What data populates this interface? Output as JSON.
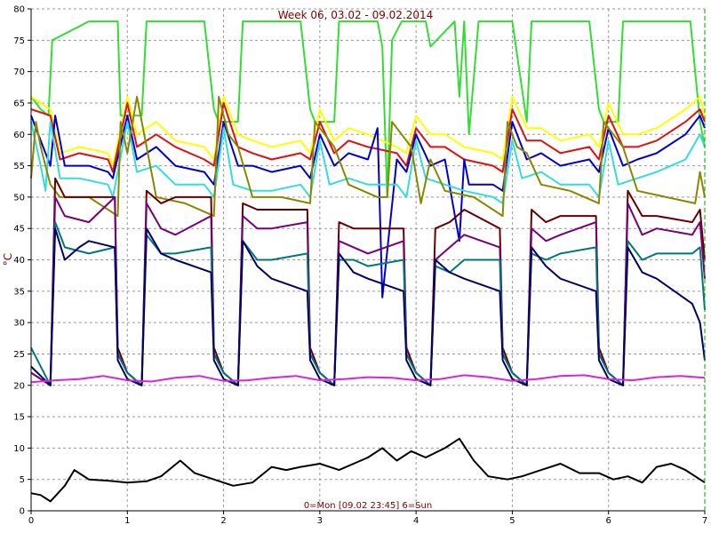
{
  "chart_data": {
    "type": "line",
    "title": "Week 06, 03.02 - 09.02.2014",
    "caption": "0=Mon [09.02 23:45] 6=Sun",
    "ylabel": "°C",
    "xlabel": "",
    "xlim": [
      0,
      7
    ],
    "ylim": [
      0,
      80
    ],
    "x_ticks": [
      0,
      1,
      2,
      3,
      4,
      5,
      6,
      7
    ],
    "y_ticks": [
      0,
      5,
      10,
      15,
      20,
      25,
      30,
      35,
      40,
      45,
      50,
      55,
      60,
      65,
      70,
      75,
      80
    ],
    "grid": true,
    "series": [
      {
        "color": "#33dd33",
        "x": [
          0,
          0.1,
          0.18,
          0.22,
          0.6,
          0.9,
          0.93,
          1.15,
          1.2,
          1.8,
          1.9,
          1.95,
          2.15,
          2.2,
          2.8,
          2.9,
          2.95,
          3.15,
          3.2,
          3.6,
          3.65,
          3.7,
          3.75,
          3.85,
          4.1,
          4.15,
          4.4,
          4.45,
          4.5,
          4.55,
          4.65,
          4.75,
          5.0,
          5.15,
          5.2,
          5.8,
          5.9,
          5.95,
          6.1,
          6.15,
          6.2,
          6.85,
          6.95,
          7.0
        ],
        "y": [
          66,
          64,
          63,
          75,
          78,
          78,
          63,
          63,
          78,
          78,
          64,
          62,
          62,
          78,
          78,
          64,
          62,
          62,
          78,
          78,
          74,
          50,
          75,
          78,
          78,
          74,
          78,
          66,
          78,
          60,
          78,
          78,
          78,
          62,
          78,
          78,
          64,
          62,
          62,
          78,
          78,
          78,
          62,
          58
        ]
      },
      {
        "color": "#ffff00",
        "x": [
          0,
          0.2,
          0.3,
          0.5,
          0.8,
          0.85,
          1.0,
          1.1,
          1.3,
          1.5,
          1.8,
          1.9,
          2.0,
          2.15,
          2.3,
          2.5,
          2.8,
          2.9,
          3.0,
          3.15,
          3.3,
          3.5,
          3.8,
          3.9,
          4.0,
          4.15,
          4.3,
          4.5,
          4.8,
          4.9,
          5.0,
          5.15,
          5.3,
          5.5,
          5.8,
          5.9,
          6.0,
          6.15,
          6.3,
          6.5,
          6.8,
          6.95,
          7.0
        ],
        "y": [
          66,
          64,
          57,
          58,
          57,
          55,
          66,
          60,
          62,
          59,
          58,
          56,
          66,
          60,
          59,
          58,
          59,
          57,
          64,
          59,
          61,
          60,
          58,
          57,
          63,
          60,
          60,
          58,
          57,
          56,
          66,
          61,
          61,
          59,
          60,
          58,
          65,
          60,
          60,
          61,
          64,
          66,
          63
        ]
      },
      {
        "color": "#dd1111",
        "x": [
          0,
          0.2,
          0.3,
          0.5,
          0.8,
          0.85,
          1.0,
          1.1,
          1.3,
          1.5,
          1.8,
          1.9,
          2.0,
          2.15,
          2.3,
          2.5,
          2.8,
          2.9,
          3.0,
          3.15,
          3.3,
          3.5,
          3.8,
          3.9,
          4.0,
          4.15,
          4.3,
          4.5,
          4.8,
          4.9,
          5.0,
          5.15,
          5.3,
          5.5,
          5.8,
          5.9,
          6.0,
          6.15,
          6.3,
          6.5,
          6.8,
          6.95,
          7.0
        ],
        "y": [
          64,
          63,
          56,
          57,
          56,
          54,
          65,
          58,
          60,
          58,
          56,
          55,
          65,
          58,
          57,
          56,
          57,
          56,
          62,
          57,
          59,
          58,
          57,
          55,
          61,
          58,
          58,
          56,
          55,
          54,
          64,
          59,
          59,
          57,
          58,
          56,
          63,
          58,
          58,
          59,
          62,
          64,
          62
        ]
      },
      {
        "color": "#0000cc",
        "x": [
          0,
          0.15,
          0.2,
          0.25,
          0.35,
          0.6,
          0.8,
          0.85,
          1.0,
          1.1,
          1.3,
          1.5,
          1.8,
          1.9,
          2.0,
          2.15,
          2.3,
          2.5,
          2.8,
          2.9,
          3.0,
          3.15,
          3.3,
          3.5,
          3.6,
          3.65,
          3.8,
          3.9,
          4.0,
          4.15,
          4.3,
          4.45,
          4.5,
          4.55,
          4.8,
          4.9,
          5.0,
          5.15,
          5.3,
          5.5,
          5.8,
          5.9,
          6.0,
          6.15,
          6.3,
          6.5,
          6.8,
          6.95,
          7.0
        ],
        "y": [
          63,
          57,
          55,
          63,
          55,
          55,
          54,
          53,
          63,
          56,
          58,
          55,
          54,
          52,
          62,
          55,
          55,
          54,
          55,
          53,
          60,
          55,
          57,
          56,
          61,
          34,
          56,
          54,
          60,
          55,
          56,
          43,
          56,
          52,
          52,
          51,
          62,
          56,
          57,
          55,
          56,
          54,
          61,
          55,
          56,
          57,
          60,
          63,
          61
        ]
      },
      {
        "color": "#33dddd",
        "x": [
          0,
          0.1,
          0.15,
          0.2,
          0.3,
          0.5,
          0.8,
          0.85,
          1.0,
          1.1,
          1.3,
          1.5,
          1.8,
          1.9,
          2.0,
          2.1,
          2.3,
          2.5,
          2.8,
          2.9,
          3.0,
          3.1,
          3.3,
          3.5,
          3.8,
          3.9,
          4.0,
          4.1,
          4.3,
          4.5,
          4.8,
          4.9,
          5.0,
          5.1,
          5.3,
          5.5,
          5.8,
          5.9,
          6.0,
          6.1,
          6.3,
          6.5,
          6.8,
          6.95,
          7.0
        ],
        "y": [
          62,
          55,
          51,
          62,
          53,
          53,
          52,
          50,
          62,
          54,
          55,
          52,
          52,
          50,
          61,
          52,
          51,
          51,
          52,
          50,
          59,
          52,
          53,
          52,
          52,
          50,
          59,
          53,
          52,
          51,
          50,
          49,
          59,
          53,
          54,
          52,
          52,
          50,
          59,
          52,
          53,
          54,
          56,
          60,
          58
        ]
      },
      {
        "color": "#888800",
        "x": [
          0,
          0.05,
          0.1,
          0.15,
          0.2,
          0.3,
          0.6,
          0.9,
          0.93,
          1.0,
          1.1,
          1.3,
          1.6,
          1.9,
          1.95,
          2.05,
          2.15,
          2.3,
          2.6,
          2.9,
          2.95,
          3.05,
          3.15,
          3.3,
          3.6,
          3.7,
          3.75,
          3.85,
          3.95,
          4.05,
          4.15,
          4.3,
          4.6,
          4.9,
          4.95,
          5.05,
          5.15,
          5.3,
          5.6,
          5.9,
          5.95,
          6.05,
          6.15,
          6.3,
          6.6,
          6.9,
          6.95,
          7.0
        ],
        "y": [
          53,
          62,
          58,
          55,
          52,
          50,
          50,
          47,
          62,
          57,
          66,
          50,
          49,
          47,
          66,
          60,
          58,
          50,
          50,
          49,
          62,
          60,
          58,
          52,
          50,
          50,
          62,
          60,
          58,
          49,
          56,
          51,
          50,
          47,
          62,
          58,
          57,
          52,
          51,
          49,
          62,
          60,
          58,
          51,
          50,
          49,
          54,
          50
        ]
      },
      {
        "color": "#660000",
        "x": [
          0,
          0.2,
          0.25,
          0.35,
          0.6,
          0.87,
          0.9,
          1.0,
          1.15,
          1.2,
          1.35,
          1.5,
          1.87,
          1.9,
          2.0,
          2.15,
          2.2,
          2.35,
          2.5,
          2.87,
          2.9,
          3.0,
          3.15,
          3.2,
          3.35,
          3.5,
          3.87,
          3.9,
          4.0,
          4.15,
          4.2,
          4.35,
          4.5,
          4.87,
          4.9,
          5.0,
          5.15,
          5.2,
          5.35,
          5.5,
          5.87,
          5.9,
          6.0,
          6.15,
          6.2,
          6.35,
          6.5,
          6.87,
          6.95,
          7.0
        ],
        "y": [
          22,
          20,
          53,
          50,
          50,
          50,
          26,
          22,
          20,
          51,
          49,
          50,
          50,
          26,
          22,
          20,
          49,
          48,
          48,
          48,
          26,
          22,
          20,
          46,
          45,
          45,
          45,
          26,
          22,
          20,
          45,
          46,
          48,
          45,
          26,
          22,
          20,
          48,
          46,
          47,
          47,
          26,
          22,
          20,
          51,
          47,
          47,
          46,
          48,
          40
        ]
      },
      {
        "color": "#770077",
        "x": [
          0,
          0.2,
          0.25,
          0.35,
          0.6,
          0.87,
          0.9,
          1.0,
          1.15,
          1.2,
          1.35,
          1.5,
          1.87,
          1.9,
          2.0,
          2.15,
          2.2,
          2.35,
          2.5,
          2.87,
          2.9,
          3.0,
          3.15,
          3.2,
          3.35,
          3.5,
          3.87,
          3.9,
          4.0,
          4.15,
          4.2,
          4.35,
          4.5,
          4.87,
          4.9,
          5.0,
          5.15,
          5.2,
          5.35,
          5.5,
          5.87,
          5.9,
          6.0,
          6.15,
          6.2,
          6.35,
          6.5,
          6.87,
          6.95,
          7.0
        ],
        "y": [
          22,
          20,
          50,
          47,
          46,
          50,
          25,
          22,
          20,
          49,
          45,
          44,
          47,
          25,
          22,
          20,
          47,
          45,
          45,
          46,
          25,
          22,
          20,
          43,
          42,
          41,
          43,
          25,
          22,
          20,
          40,
          42,
          44,
          42,
          25,
          22,
          20,
          45,
          43,
          44,
          46,
          25,
          22,
          20,
          49,
          44,
          45,
          44,
          46,
          37
        ]
      },
      {
        "color": "#007777",
        "x": [
          0,
          0.2,
          0.25,
          0.35,
          0.6,
          0.87,
          0.9,
          1.0,
          1.15,
          1.2,
          1.35,
          1.5,
          1.87,
          1.9,
          2.0,
          2.15,
          2.2,
          2.35,
          2.5,
          2.87,
          2.9,
          3.0,
          3.15,
          3.2,
          3.35,
          3.5,
          3.87,
          3.9,
          4.0,
          4.15,
          4.2,
          4.35,
          4.5,
          4.87,
          4.9,
          5.0,
          5.15,
          5.2,
          5.35,
          5.5,
          5.87,
          5.9,
          6.0,
          6.15,
          6.2,
          6.35,
          6.5,
          6.87,
          6.95,
          7.0
        ],
        "y": [
          26,
          20,
          46,
          42,
          41,
          42,
          25,
          22,
          20,
          44,
          41,
          41,
          42,
          25,
          22,
          20,
          43,
          40,
          40,
          41,
          25,
          22,
          20,
          40,
          40,
          39,
          40,
          25,
          22,
          20,
          39,
          38,
          40,
          40,
          25,
          22,
          20,
          41,
          40,
          41,
          42,
          25,
          22,
          20,
          43,
          40,
          41,
          41,
          42,
          32
        ]
      },
      {
        "color": "#000066",
        "x": [
          0,
          0.2,
          0.25,
          0.35,
          0.5,
          0.6,
          0.87,
          0.9,
          1.0,
          1.15,
          1.2,
          1.35,
          1.5,
          1.87,
          1.9,
          2.0,
          2.15,
          2.2,
          2.35,
          2.5,
          2.87,
          2.9,
          3.0,
          3.15,
          3.2,
          3.35,
          3.5,
          3.87,
          3.9,
          4.0,
          4.15,
          4.2,
          4.35,
          4.5,
          4.87,
          4.9,
          5.0,
          5.15,
          5.2,
          5.35,
          5.5,
          5.87,
          5.9,
          6.0,
          6.15,
          6.2,
          6.35,
          6.5,
          6.87,
          6.95,
          7.0
        ],
        "y": [
          23,
          20,
          45,
          40,
          42,
          43,
          42,
          24,
          21,
          20,
          45,
          41,
          40,
          38,
          24,
          21,
          20,
          43,
          39,
          37,
          35,
          24,
          21,
          20,
          41,
          38,
          37,
          35,
          24,
          21,
          20,
          40,
          38,
          37,
          35,
          24,
          21,
          20,
          42,
          39,
          37,
          35,
          24,
          21,
          20,
          42,
          38,
          37,
          33,
          30,
          24
        ]
      },
      {
        "color": "#dd22dd",
        "x": [
          0,
          0.25,
          0.5,
          0.75,
          1.0,
          1.25,
          1.5,
          1.75,
          2.0,
          2.25,
          2.5,
          2.75,
          3.0,
          3.25,
          3.5,
          3.75,
          4.0,
          4.25,
          4.5,
          4.75,
          5.0,
          5.25,
          5.5,
          5.75,
          6.0,
          6.25,
          6.5,
          6.75,
          7.0
        ],
        "y": [
          20.5,
          20.8,
          21.0,
          21.5,
          20.8,
          20.6,
          21.2,
          21.5,
          20.7,
          20.8,
          21.2,
          21.5,
          20.8,
          21.0,
          21.3,
          21.2,
          20.8,
          21.0,
          21.6,
          21.3,
          20.7,
          21.0,
          21.5,
          21.6,
          21.0,
          20.8,
          21.3,
          21.5,
          21.2
        ]
      },
      {
        "color": "#000000",
        "x": [
          0,
          0.1,
          0.2,
          0.35,
          0.45,
          0.6,
          0.8,
          1.0,
          1.2,
          1.35,
          1.55,
          1.7,
          1.9,
          2.1,
          2.3,
          2.5,
          2.65,
          2.8,
          3.0,
          3.2,
          3.35,
          3.5,
          3.65,
          3.8,
          3.95,
          4.1,
          4.3,
          4.45,
          4.6,
          4.75,
          4.95,
          5.1,
          5.3,
          5.5,
          5.7,
          5.9,
          6.05,
          6.2,
          6.35,
          6.5,
          6.65,
          6.8,
          6.95,
          7.0
        ],
        "y": [
          2.8,
          2.5,
          1.5,
          4.0,
          6.5,
          5.0,
          4.8,
          4.5,
          4.7,
          5.5,
          8.0,
          6.0,
          5.0,
          4.0,
          4.5,
          7.0,
          6.5,
          7.0,
          7.5,
          6.5,
          7.5,
          8.5,
          10.0,
          8.0,
          9.5,
          8.5,
          10.0,
          11.5,
          8.0,
          5.5,
          5.0,
          5.5,
          6.5,
          7.5,
          6.0,
          6.0,
          5.0,
          5.5,
          4.5,
          7.0,
          7.5,
          6.5,
          5.0,
          4.5
        ]
      }
    ]
  }
}
